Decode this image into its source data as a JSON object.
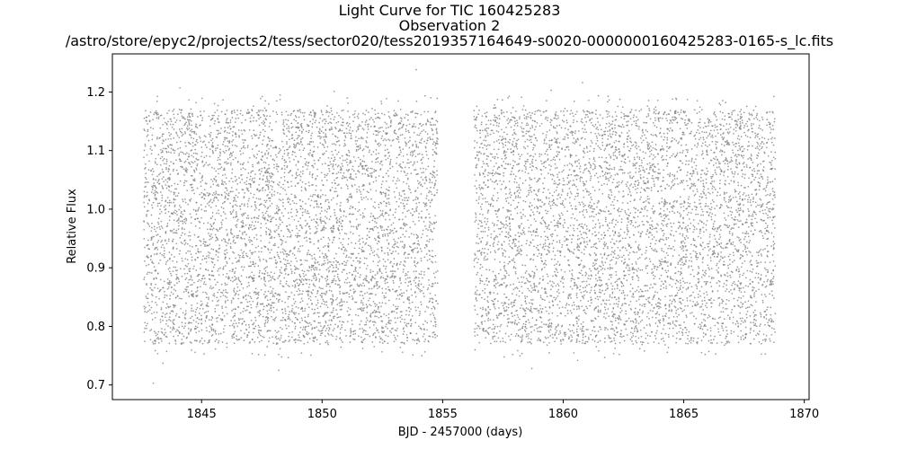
{
  "chart_data": {
    "type": "scatter",
    "title": [
      "Light Curve for TIC 160425283",
      "Observation 2",
      "/astro/store/epyc2/projects2/tess/sector020/tess2019357164649-s0020-0000000160425283-0165-s_lc.fits"
    ],
    "xlabel": "BJD - 2457000 (days)",
    "ylabel": "Relative Flux",
    "xlim": [
      1841.3,
      1870.2
    ],
    "ylim": [
      0.675,
      1.265
    ],
    "xticks": [
      1845,
      1850,
      1855,
      1860,
      1865,
      1870
    ],
    "yticks": [
      0.7,
      0.8,
      0.9,
      1.0,
      1.1,
      1.2
    ],
    "marker_color": "#808080",
    "grid": false,
    "legend": "none",
    "series": [
      {
        "segments": [
          {
            "x_start": 1842.6,
            "x_end": 1854.8,
            "flux_low": 0.77,
            "flux_high": 1.17
          },
          {
            "x_start": 1856.3,
            "x_end": 1868.8,
            "flux_low": 0.77,
            "flux_high": 1.17
          }
        ],
        "outliers": [
          {
            "x": 1843.0,
            "y": 0.703
          },
          {
            "x": 1853.9,
            "y": 1.238
          },
          {
            "x": 1860.8,
            "y": 1.216
          },
          {
            "x": 1848.2,
            "y": 0.725
          },
          {
            "x": 1858.7,
            "y": 0.728
          },
          {
            "x": 1844.1,
            "y": 1.207
          },
          {
            "x": 1850.5,
            "y": 1.201
          },
          {
            "x": 1859.5,
            "y": 1.203
          },
          {
            "x": 1843.4,
            "y": 0.737
          },
          {
            "x": 1860.6,
            "y": 0.742
          }
        ]
      }
    ]
  }
}
